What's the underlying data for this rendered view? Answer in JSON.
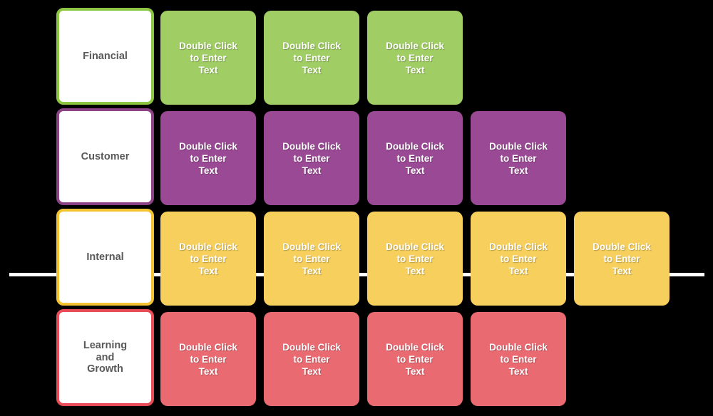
{
  "canvas": {
    "background": "#000000"
  },
  "colors": {
    "financial-border": "#8dc642",
    "financial-fill": "#a0ce64",
    "customer-border": "#8b4385",
    "customer-fill": "#9a4a94",
    "internal-border": "#f3c331",
    "internal-fill": "#f6cf5d",
    "learning-border": "#e84c56",
    "learning-fill": "#ea6a72",
    "label-text": "#595959",
    "card-text": "#ffffff",
    "line": "#ffffff"
  },
  "rows": [
    {
      "label": "Financial",
      "card_text": "Double Click\nto Enter\nText",
      "card_count": 3
    },
    {
      "label": "Customer",
      "card_text": "Double Click\nto Enter\nText",
      "card_count": 4
    },
    {
      "label": "Internal",
      "card_text": "Double Click\nto Enter\nText",
      "card_count": 5
    },
    {
      "label": "Learning\nand\nGrowth",
      "card_text": "Double Click\nto Enter\nText",
      "card_count": 4
    }
  ]
}
